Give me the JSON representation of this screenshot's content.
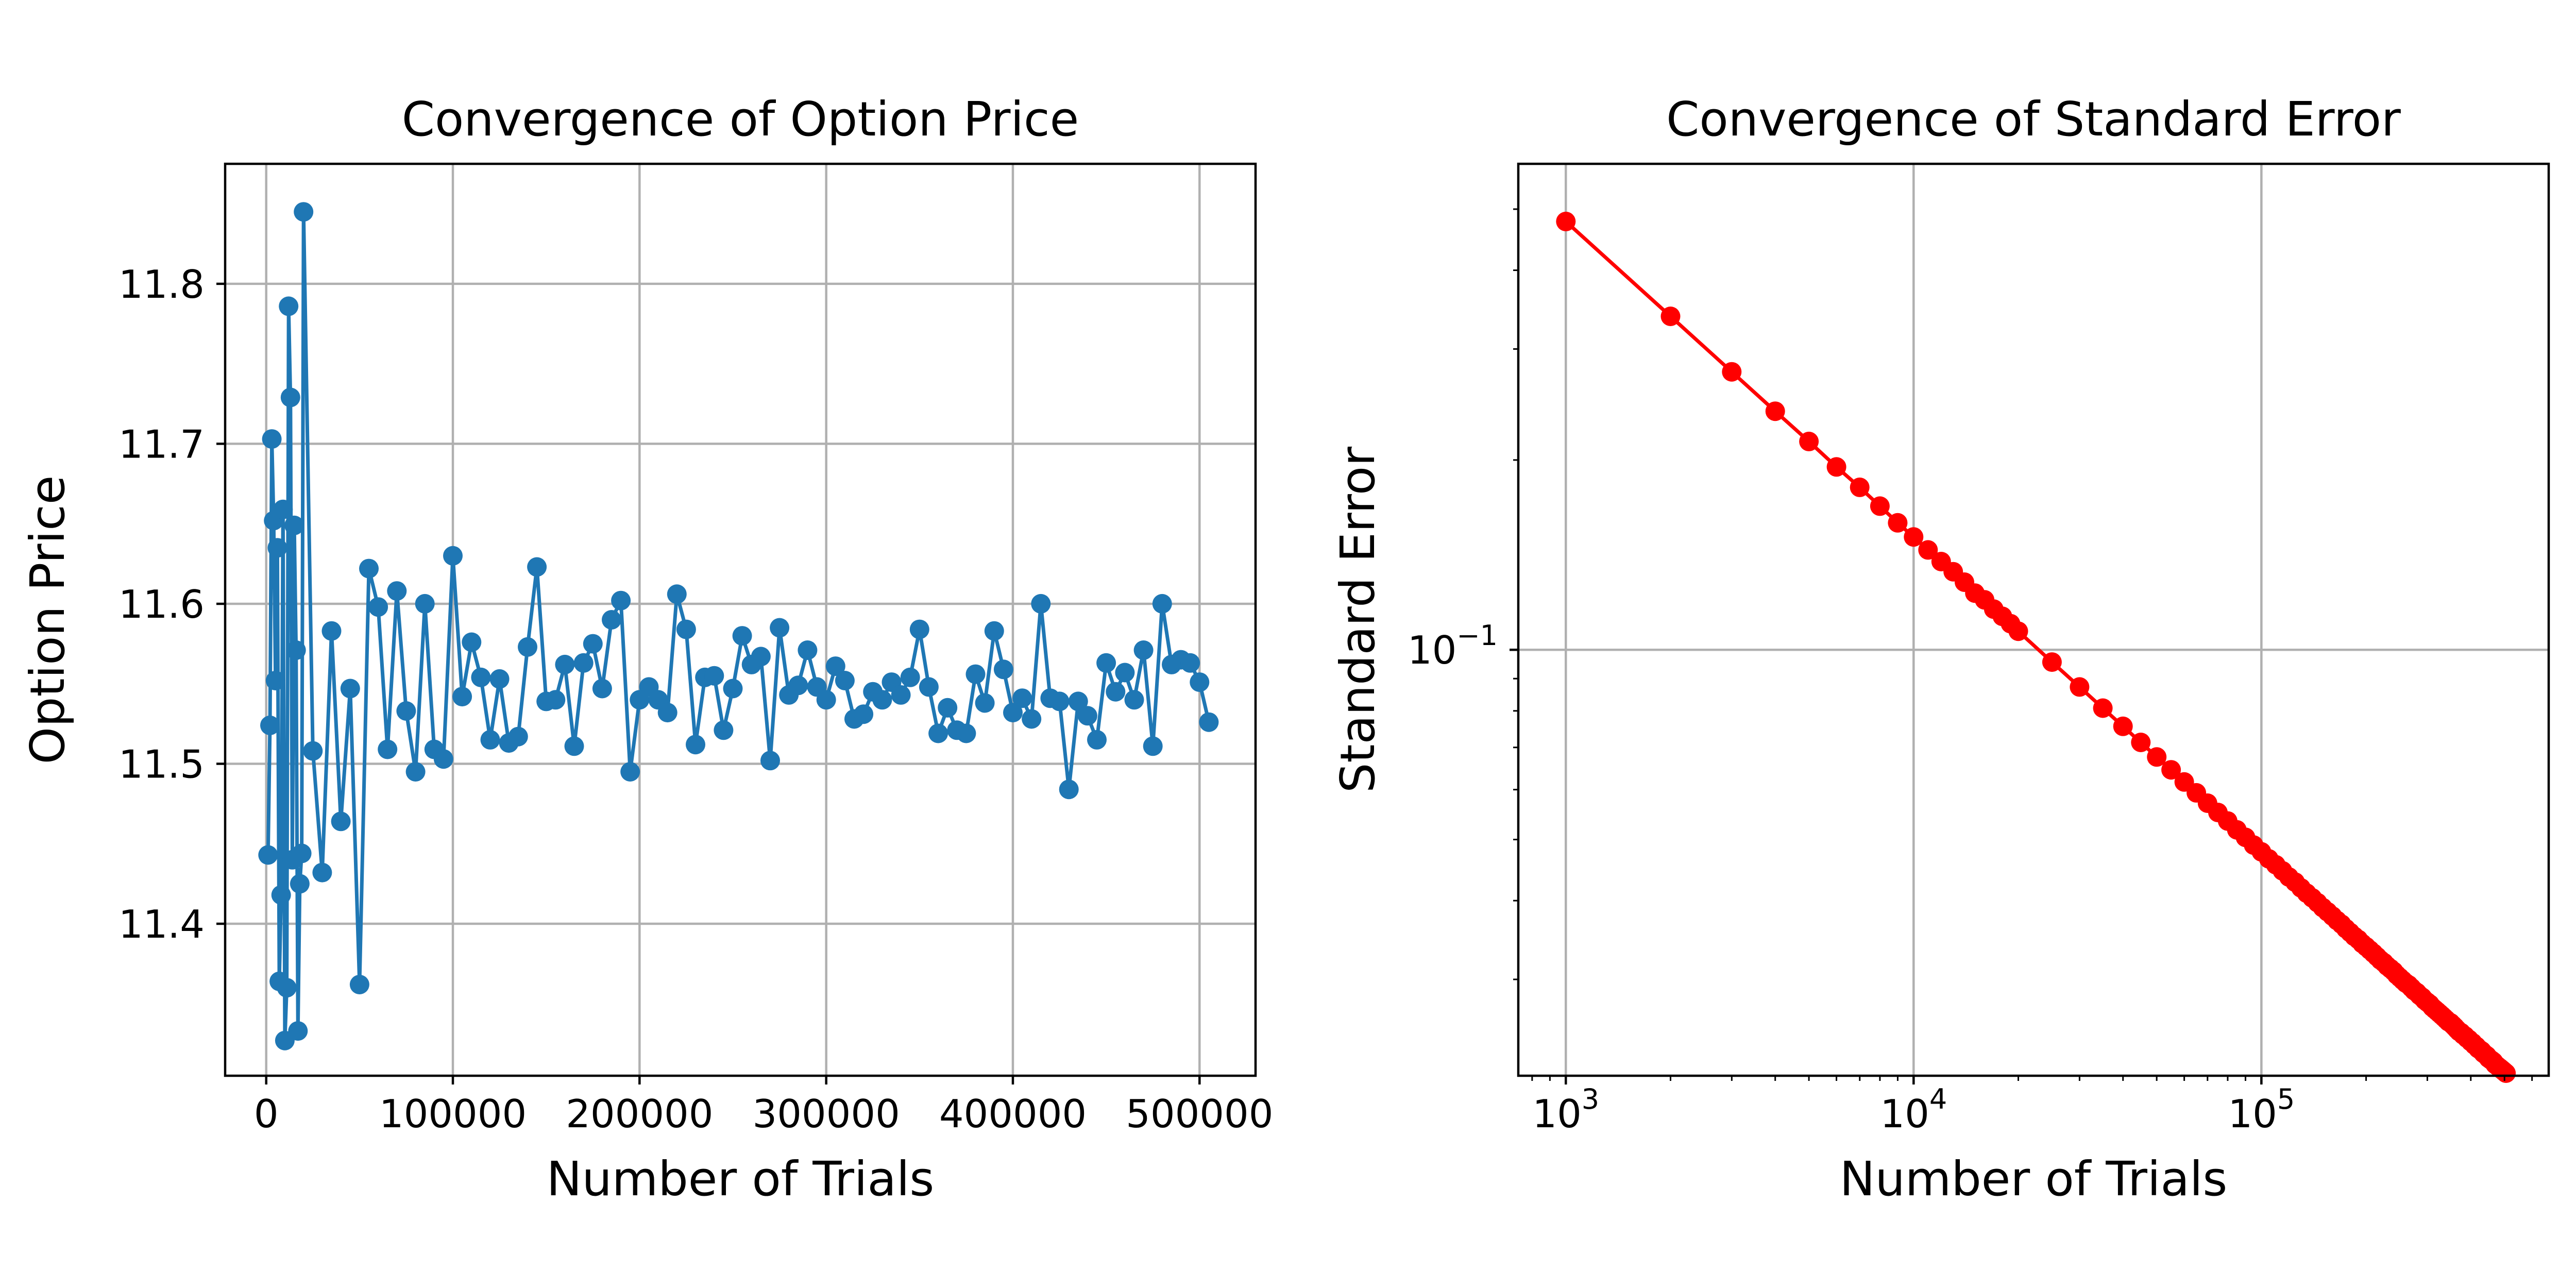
{
  "chart_data": [
    {
      "type": "line",
      "title": "Convergence of Option Price",
      "xlabel": "Number of Trials",
      "ylabel": "Option Price",
      "xlim": [
        -22000,
        530000
      ],
      "ylim": [
        11.305,
        11.875
      ],
      "xticks": [
        0,
        100000,
        200000,
        300000,
        400000,
        500000
      ],
      "xtick_labels": [
        "0",
        "100000",
        "200000",
        "300000",
        "400000",
        "500000"
      ],
      "yticks": [
        11.4,
        11.5,
        11.6,
        11.7,
        11.8
      ],
      "ytick_labels": [
        "11.4",
        "11.5",
        "11.6",
        "11.7",
        "11.8"
      ],
      "grid": true,
      "color": "#1f77b4",
      "marker": "o",
      "series": [
        {
          "x": [
            1000,
            2000,
            3000,
            4000,
            5000,
            6000,
            7000,
            8000,
            9000,
            10000,
            11000,
            12000,
            13000,
            14000,
            15000,
            16000,
            17000,
            18000,
            19000,
            20000,
            25000,
            30000,
            35000,
            40000,
            45000,
            50000,
            55000,
            60000,
            65000,
            70000,
            75000,
            80000,
            85000,
            90000,
            95000,
            100000,
            105000,
            110000,
            115000,
            120000,
            125000,
            130000,
            135000,
            140000,
            145000,
            150000,
            155000,
            160000,
            165000,
            170000,
            175000,
            180000,
            185000,
            190000,
            195000,
            200000,
            205000,
            210000,
            215000,
            220000,
            225000,
            230000,
            235000,
            240000,
            245000,
            250000,
            255000,
            260000,
            265000,
            270000,
            275000,
            280000,
            285000,
            290000,
            295000,
            300000,
            305000,
            310000,
            315000,
            320000,
            325000,
            330000,
            335000,
            340000,
            345000,
            350000,
            355000,
            360000,
            365000,
            370000,
            375000,
            380000,
            385000,
            390000,
            395000,
            400000,
            405000,
            410000,
            415000,
            420000,
            425000,
            430000,
            435000,
            440000,
            445000,
            450000,
            455000,
            460000,
            465000,
            470000,
            475000,
            480000,
            485000,
            490000,
            495000,
            500000,
            505000
          ],
          "y": [
            11.443,
            11.524,
            11.703,
            11.652,
            11.552,
            11.635,
            11.364,
            11.418,
            11.659,
            11.327,
            11.36,
            11.786,
            11.729,
            11.44,
            11.649,
            11.571,
            11.333,
            11.425,
            11.444,
            11.845,
            11.508,
            11.432,
            11.583,
            11.464,
            11.547,
            11.362,
            11.622,
            11.598,
            11.509,
            11.608,
            11.533,
            11.495,
            11.6,
            11.509,
            11.503,
            11.63,
            11.542,
            11.576,
            11.554,
            11.515,
            11.553,
            11.513,
            11.517,
            11.573,
            11.623,
            11.539,
            11.54,
            11.562,
            11.511,
            11.563,
            11.575,
            11.547,
            11.59,
            11.602,
            11.495,
            11.54,
            11.548,
            11.54,
            11.532,
            11.606,
            11.584,
            11.512,
            11.554,
            11.555,
            11.521,
            11.547,
            11.58,
            11.562,
            11.567,
            11.502,
            11.585,
            11.543,
            11.549,
            11.571,
            11.548,
            11.54,
            11.561,
            11.552,
            11.528,
            11.531,
            11.545,
            11.54,
            11.551,
            11.543,
            11.554,
            11.584,
            11.548,
            11.519,
            11.535,
            11.521,
            11.519,
            11.556,
            11.538,
            11.583,
            11.559,
            11.532,
            11.541,
            11.528,
            11.6,
            11.541,
            11.539,
            11.484,
            11.539,
            11.53,
            11.515,
            11.563,
            11.545,
            11.557,
            11.54,
            11.571,
            11.511,
            11.6,
            11.562,
            11.565,
            11.563,
            11.551,
            11.526
          ]
        }
      ]
    },
    {
      "type": "line",
      "title": "Convergence of Standard Error",
      "xlabel": "Number of Trials",
      "ylabel": "Standard Error",
      "xscale": "log",
      "yscale": "log",
      "xlim": [
        730,
        670000
      ],
      "ylim": [
        0.0211,
        0.59
      ],
      "xticks": [
        1000,
        10000,
        100000
      ],
      "xtick_bases": [
        "10",
        "10",
        "10"
      ],
      "xtick_exponents": [
        "3",
        "4",
        "5"
      ],
      "yticks": [
        0.1
      ],
      "ytick_bases": [
        "10"
      ],
      "ytick_exponents": [
        "−1"
      ],
      "grid": true,
      "color": "#ff0000",
      "marker": "o",
      "series": [
        {
          "x": [
            1000,
            2000,
            3000,
            4000,
            5000,
            6000,
            7000,
            8000,
            9000,
            10000,
            11000,
            12000,
            13000,
            14000,
            15000,
            16000,
            17000,
            18000,
            19000,
            20000,
            25000,
            30000,
            35000,
            40000,
            45000,
            50000,
            55000,
            60000,
            65000,
            70000,
            75000,
            80000,
            85000,
            90000,
            95000,
            100000,
            105000,
            110000,
            115000,
            120000,
            125000,
            130000,
            135000,
            140000,
            145000,
            150000,
            155000,
            160000,
            165000,
            170000,
            175000,
            180000,
            185000,
            190000,
            195000,
            200000,
            205000,
            210000,
            215000,
            220000,
            225000,
            230000,
            235000,
            240000,
            245000,
            250000,
            255000,
            260000,
            265000,
            270000,
            275000,
            280000,
            285000,
            290000,
            295000,
            300000,
            305000,
            310000,
            315000,
            320000,
            325000,
            330000,
            335000,
            340000,
            345000,
            350000,
            355000,
            360000,
            365000,
            370000,
            375000,
            380000,
            385000,
            390000,
            395000,
            400000,
            405000,
            410000,
            415000,
            420000,
            425000,
            430000,
            435000,
            440000,
            445000,
            450000,
            455000,
            460000,
            465000,
            470000,
            475000,
            480000,
            485000,
            490000,
            495000,
            500000,
            505000
          ],
          "y": [
            0.478,
            0.338,
            0.276,
            0.239,
            0.214,
            0.195,
            0.181,
            0.169,
            0.159,
            0.151,
            0.144,
            0.138,
            0.133,
            0.128,
            0.123,
            0.12,
            0.116,
            0.113,
            0.11,
            0.107,
            0.0956,
            0.0873,
            0.0808,
            0.0756,
            0.0713,
            0.0676,
            0.0645,
            0.0617,
            0.0593,
            0.0571,
            0.0552,
            0.0535,
            0.0518,
            0.0504,
            0.049,
            0.0478,
            0.0466,
            0.0456,
            0.0446,
            0.0436,
            0.0428,
            0.0419,
            0.0411,
            0.0404,
            0.0397,
            0.039,
            0.0384,
            0.0378,
            0.0372,
            0.0367,
            0.0361,
            0.0356,
            0.0351,
            0.0347,
            0.0342,
            0.0338,
            0.0334,
            0.033,
            0.0326,
            0.0322,
            0.0319,
            0.0315,
            0.0312,
            0.0309,
            0.0305,
            0.0302,
            0.0299,
            0.0296,
            0.0294,
            0.0291,
            0.0288,
            0.0286,
            0.0283,
            0.0281,
            0.0278,
            0.0276,
            0.0274,
            0.0271,
            0.0269,
            0.0267,
            0.0265,
            0.0263,
            0.0261,
            0.0259,
            0.0257,
            0.0256,
            0.0254,
            0.0252,
            0.025,
            0.0248,
            0.0247,
            0.0245,
            0.0244,
            0.0242,
            0.0241,
            0.0239,
            0.0238,
            0.0236,
            0.0235,
            0.0233,
            0.0232,
            0.0231,
            0.0229,
            0.0228,
            0.0227,
            0.0225,
            0.0224,
            0.0223,
            0.0222,
            0.022,
            0.0219,
            0.0218,
            0.0217,
            0.0216,
            0.0215,
            0.0214,
            0.0213
          ]
        }
      ]
    }
  ]
}
